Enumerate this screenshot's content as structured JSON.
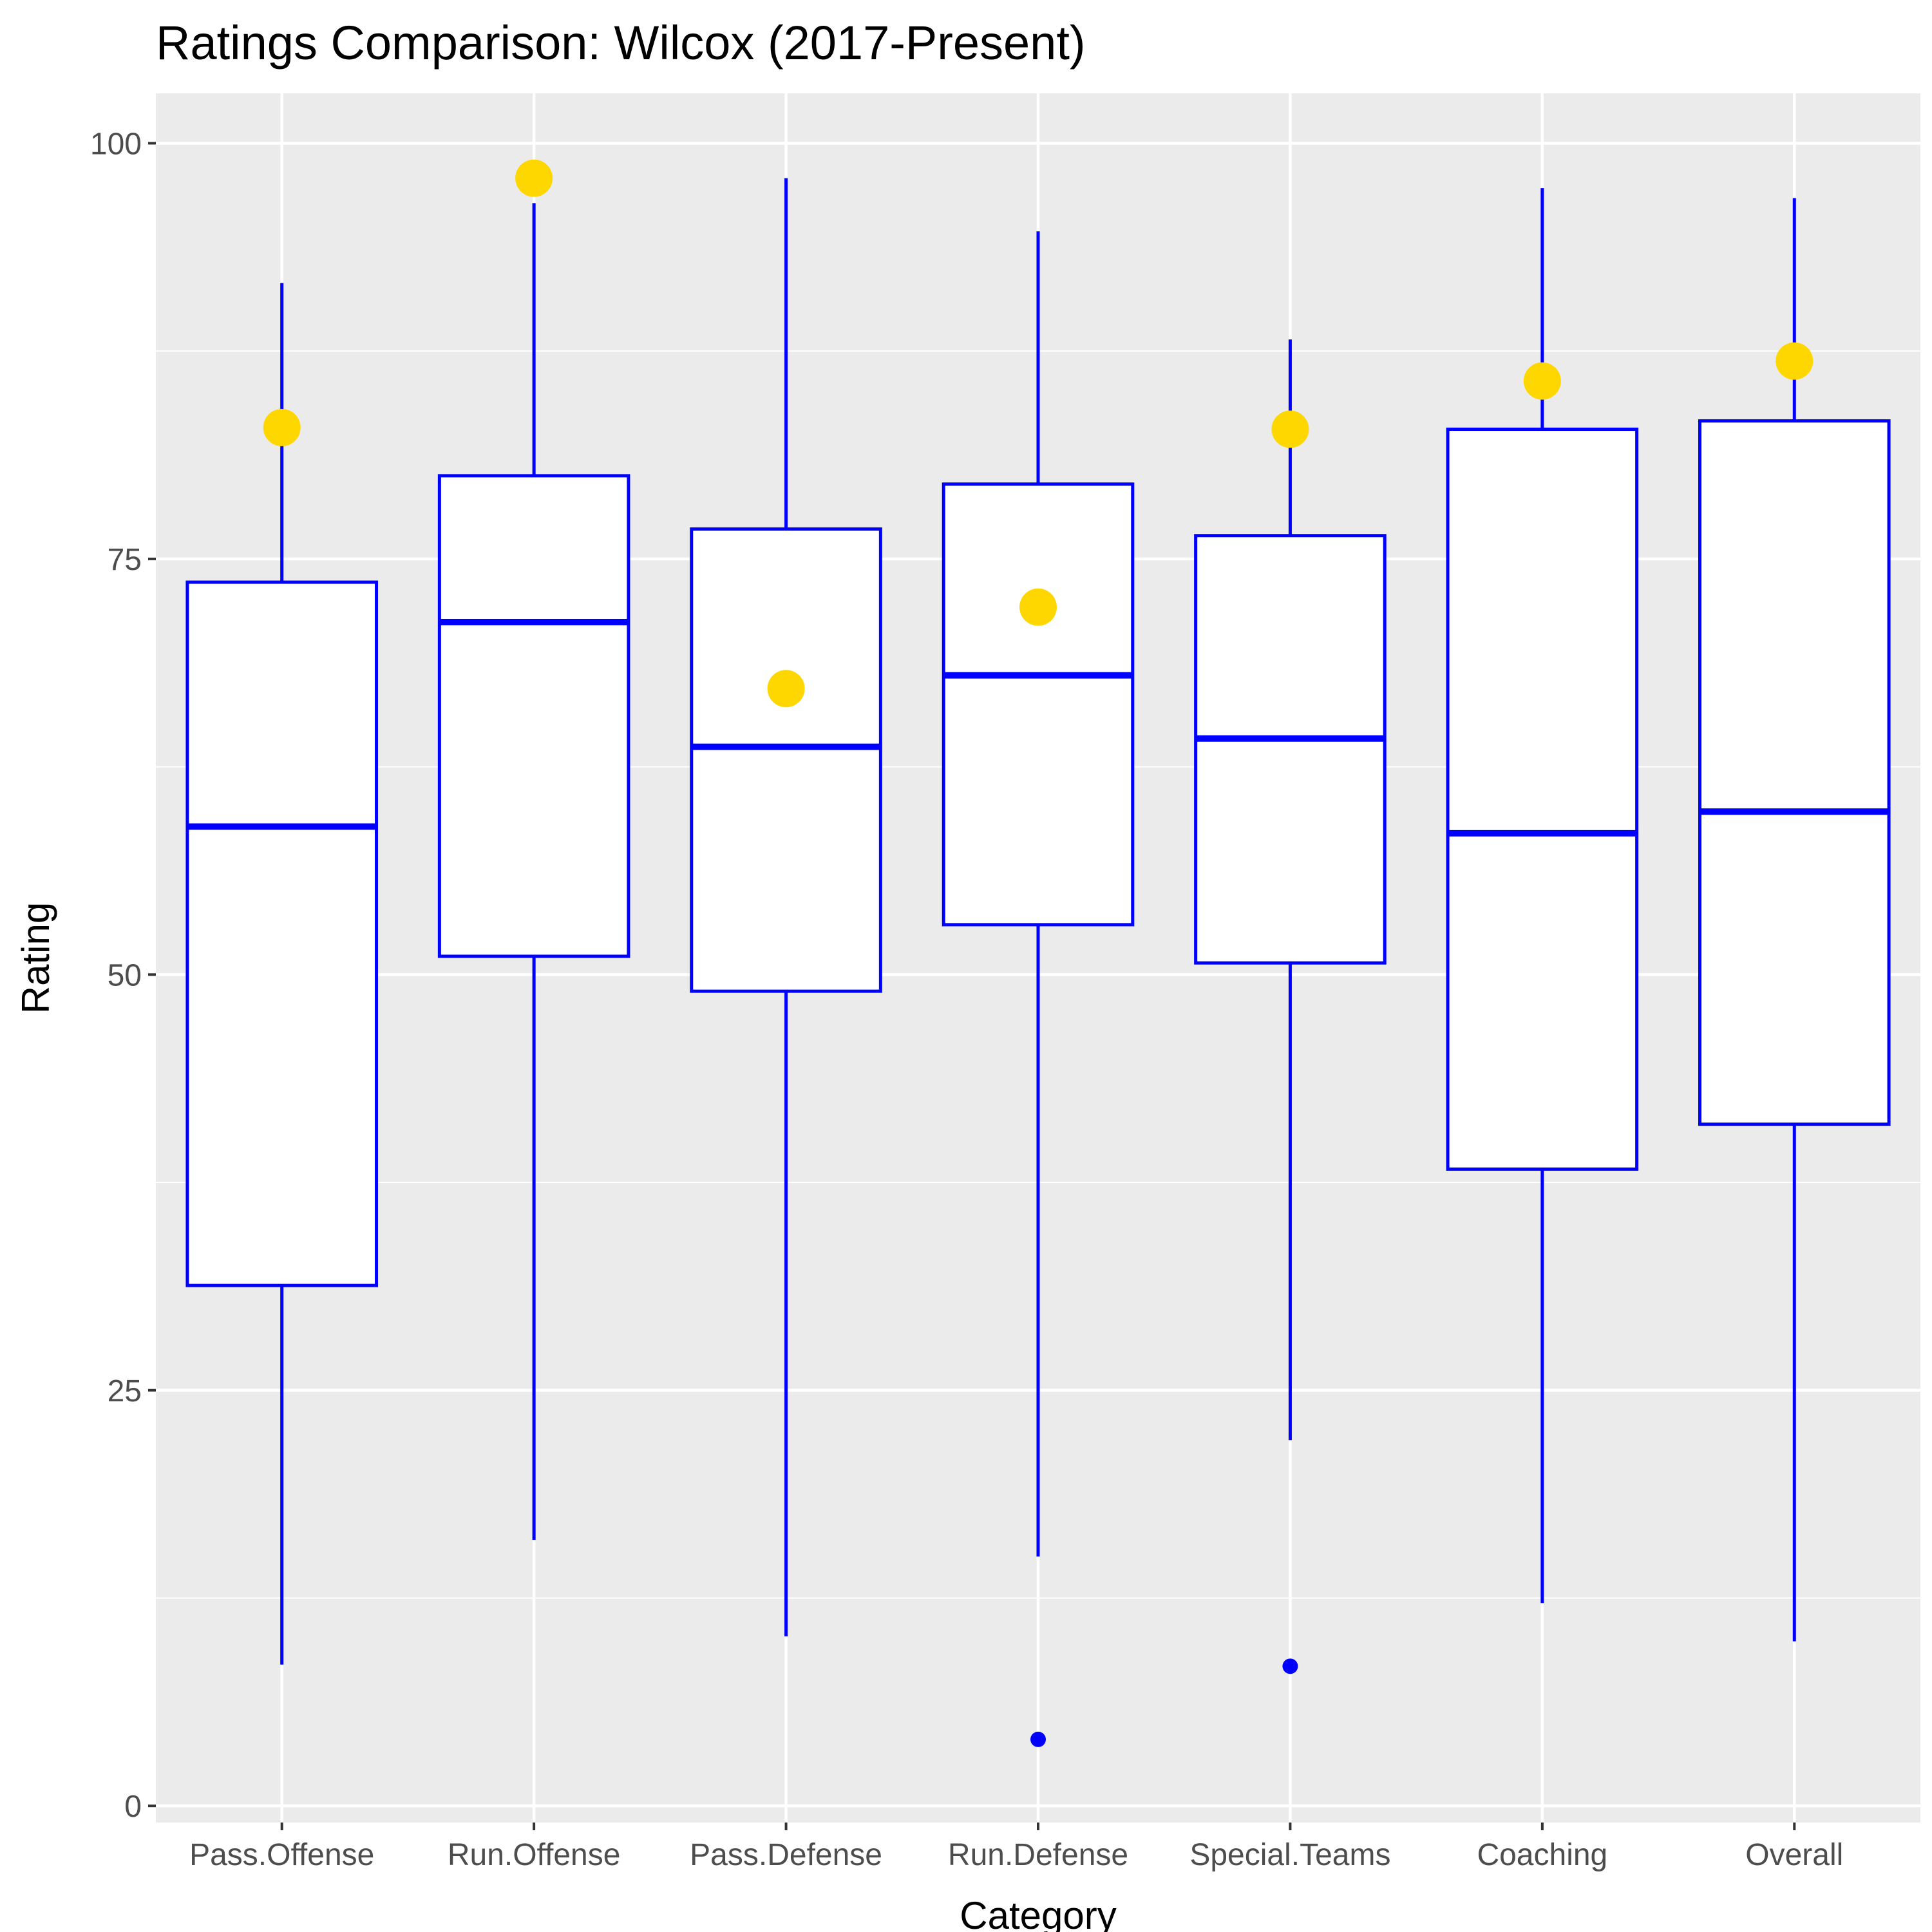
{
  "colors": {
    "panel_background": "#ebebeb",
    "grid": "#ffffff",
    "box_stroke": "#0000ff",
    "box_fill": "#ffffff",
    "highlight_point": "#ffd700",
    "outlier_point": "#0000ff",
    "tick": "#333333"
  },
  "chart_data": {
    "type": "boxplot",
    "title": "Ratings Comparison: Wilcox (2017-Present)",
    "xlabel": "Category",
    "ylabel": "Rating",
    "ylim": [
      -1,
      103
    ],
    "yticks": [
      0,
      25,
      50,
      75,
      100
    ],
    "grid": true,
    "legend": "none",
    "categories": [
      "Pass.Offense",
      "Run.Offense",
      "Pass.Defense",
      "Run.Defense",
      "Special.Teams",
      "Coaching",
      "Overall"
    ],
    "boxes": [
      {
        "category": "Pass.Offense",
        "whisker_low": 8.5,
        "q1": 31.3,
        "median": 58.9,
        "q3": 73.6,
        "whisker_high": 91.6,
        "outliers": []
      },
      {
        "category": "Run.Offense",
        "whisker_low": 16.0,
        "q1": 51.1,
        "median": 71.2,
        "q3": 80.0,
        "whisker_high": 96.4,
        "outliers": []
      },
      {
        "category": "Pass.Defense",
        "whisker_low": 10.2,
        "q1": 49.0,
        "median": 63.7,
        "q3": 76.8,
        "whisker_high": 97.9,
        "outliers": []
      },
      {
        "category": "Run.Defense",
        "whisker_low": 15.0,
        "q1": 53.0,
        "median": 68.0,
        "q3": 79.5,
        "whisker_high": 94.7,
        "outliers": [
          4.0
        ]
      },
      {
        "category": "Special.Teams",
        "whisker_low": 22.0,
        "q1": 50.7,
        "median": 64.2,
        "q3": 76.4,
        "whisker_high": 88.2,
        "outliers": [
          8.4
        ]
      },
      {
        "category": "Coaching",
        "whisker_low": 12.2,
        "q1": 38.3,
        "median": 58.5,
        "q3": 82.8,
        "whisker_high": 97.3,
        "outliers": []
      },
      {
        "category": "Overall",
        "whisker_low": 9.9,
        "q1": 41.0,
        "median": 59.8,
        "q3": 83.3,
        "whisker_high": 96.7,
        "outliers": []
      }
    ],
    "highlight_points": [
      {
        "category": "Pass.Offense",
        "value": 82.9
      },
      {
        "category": "Run.Offense",
        "value": 97.9
      },
      {
        "category": "Pass.Defense",
        "value": 67.2
      },
      {
        "category": "Run.Defense",
        "value": 72.1
      },
      {
        "category": "Special.Teams",
        "value": 82.8
      },
      {
        "category": "Coaching",
        "value": 85.7
      },
      {
        "category": "Overall",
        "value": 86.9
      }
    ]
  }
}
